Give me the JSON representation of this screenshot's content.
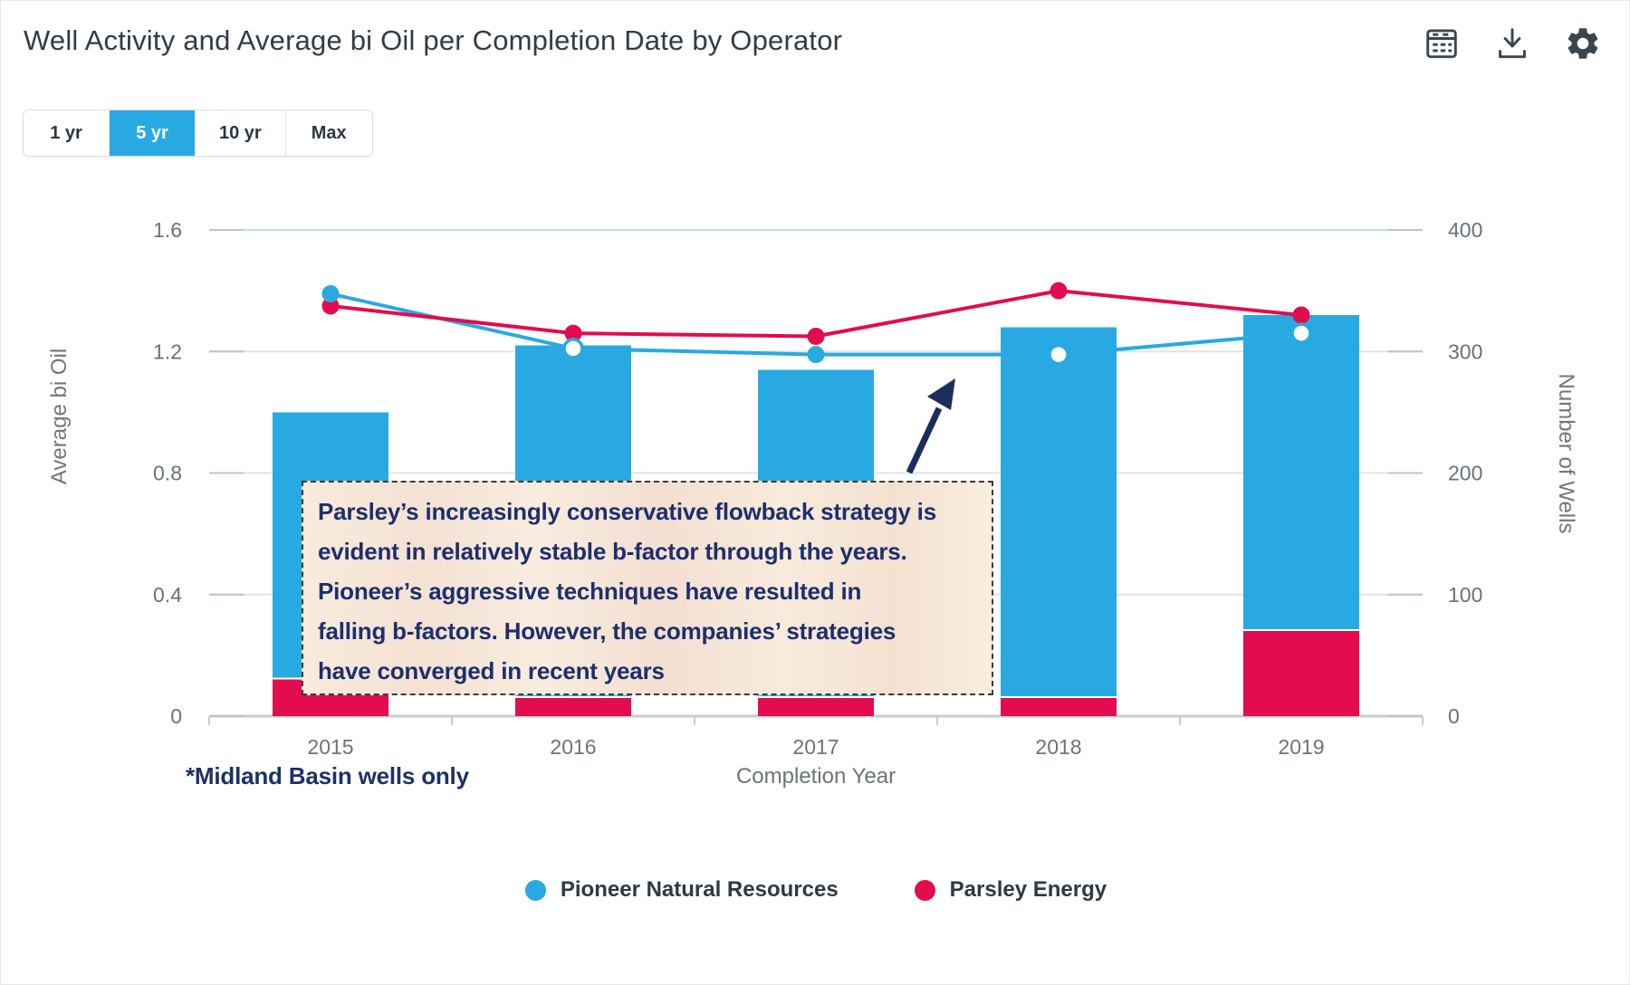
{
  "header": {
    "title": "Well Activity and Average bi Oil per Completion Date by Operator",
    "icons": [
      {
        "name": "data-table"
      },
      {
        "name": "download"
      },
      {
        "name": "settings"
      }
    ]
  },
  "controls": {
    "time_ranges": [
      {
        "label": "1 yr",
        "active": false
      },
      {
        "label": "5 yr",
        "active": true
      },
      {
        "label": "10 yr",
        "active": false
      },
      {
        "label": "Max",
        "active": false
      }
    ]
  },
  "annotation": {
    "lines": [
      "Parsley’s increasingly conservative flowback strategy is",
      "evident in relatively stable b-factor through the years.",
      "Pioneer’s aggressive techniques have resulted in",
      "falling b-factors. However, the companies’ strategies",
      "have converged in recent years"
    ]
  },
  "footnote": "*Midland Basin wells only",
  "legend": [
    {
      "label": "Pioneer Natural Resources",
      "color": "#29a9e1"
    },
    {
      "label": "Parsley Energy",
      "color": "#e20c4e"
    }
  ],
  "chart_data": {
    "type": "combo-stacked-bar-line",
    "title": "Well Activity and Average bi Oil per Completion Date by Operator",
    "categories": [
      "2015",
      "2016",
      "2017",
      "2018",
      "2019"
    ],
    "x_axis": {
      "title": "Completion Year"
    },
    "left_axis": {
      "title": "Average bi Oil",
      "tick_labels": [
        "0",
        "0.4",
        "0.8",
        "1.2",
        "1.6"
      ],
      "tick_values": [
        0,
        0.4,
        0.8,
        1.2,
        1.6
      ],
      "range": [
        0,
        1.6
      ]
    },
    "right_axis": {
      "title": "Number of Wells",
      "tick_labels": [
        "0",
        "100",
        "200",
        "300",
        "400"
      ],
      "tick_values": [
        0,
        100,
        200,
        300,
        400
      ],
      "range": [
        0,
        400
      ]
    },
    "bar_series": [
      {
        "name": "Parsley Energy",
        "color": "#e20c4e",
        "axis": "right",
        "values": [
          30,
          15,
          15,
          15,
          70
        ]
      },
      {
        "name": "Pioneer Natural Resources",
        "color": "#29a9e1",
        "axis": "right",
        "values": [
          220,
          290,
          270,
          305,
          260
        ]
      }
    ],
    "bar_totals_wells": [
      250,
      305,
      285,
      320,
      330
    ],
    "line_series": [
      {
        "name": "Pioneer Natural Resources",
        "color": "#29a9e1",
        "axis": "left",
        "values": [
          1.39,
          1.21,
          1.19,
          1.19,
          1.26
        ],
        "marker_open": [
          false,
          true,
          false,
          true,
          true
        ]
      },
      {
        "name": "Parsley Energy",
        "color": "#e20c4e",
        "axis": "left",
        "values": [
          1.35,
          1.26,
          1.25,
          1.4,
          1.32
        ],
        "marker_open": [
          false,
          false,
          false,
          false,
          false
        ]
      }
    ],
    "grid": "horizontal",
    "legend_position": "bottom"
  }
}
